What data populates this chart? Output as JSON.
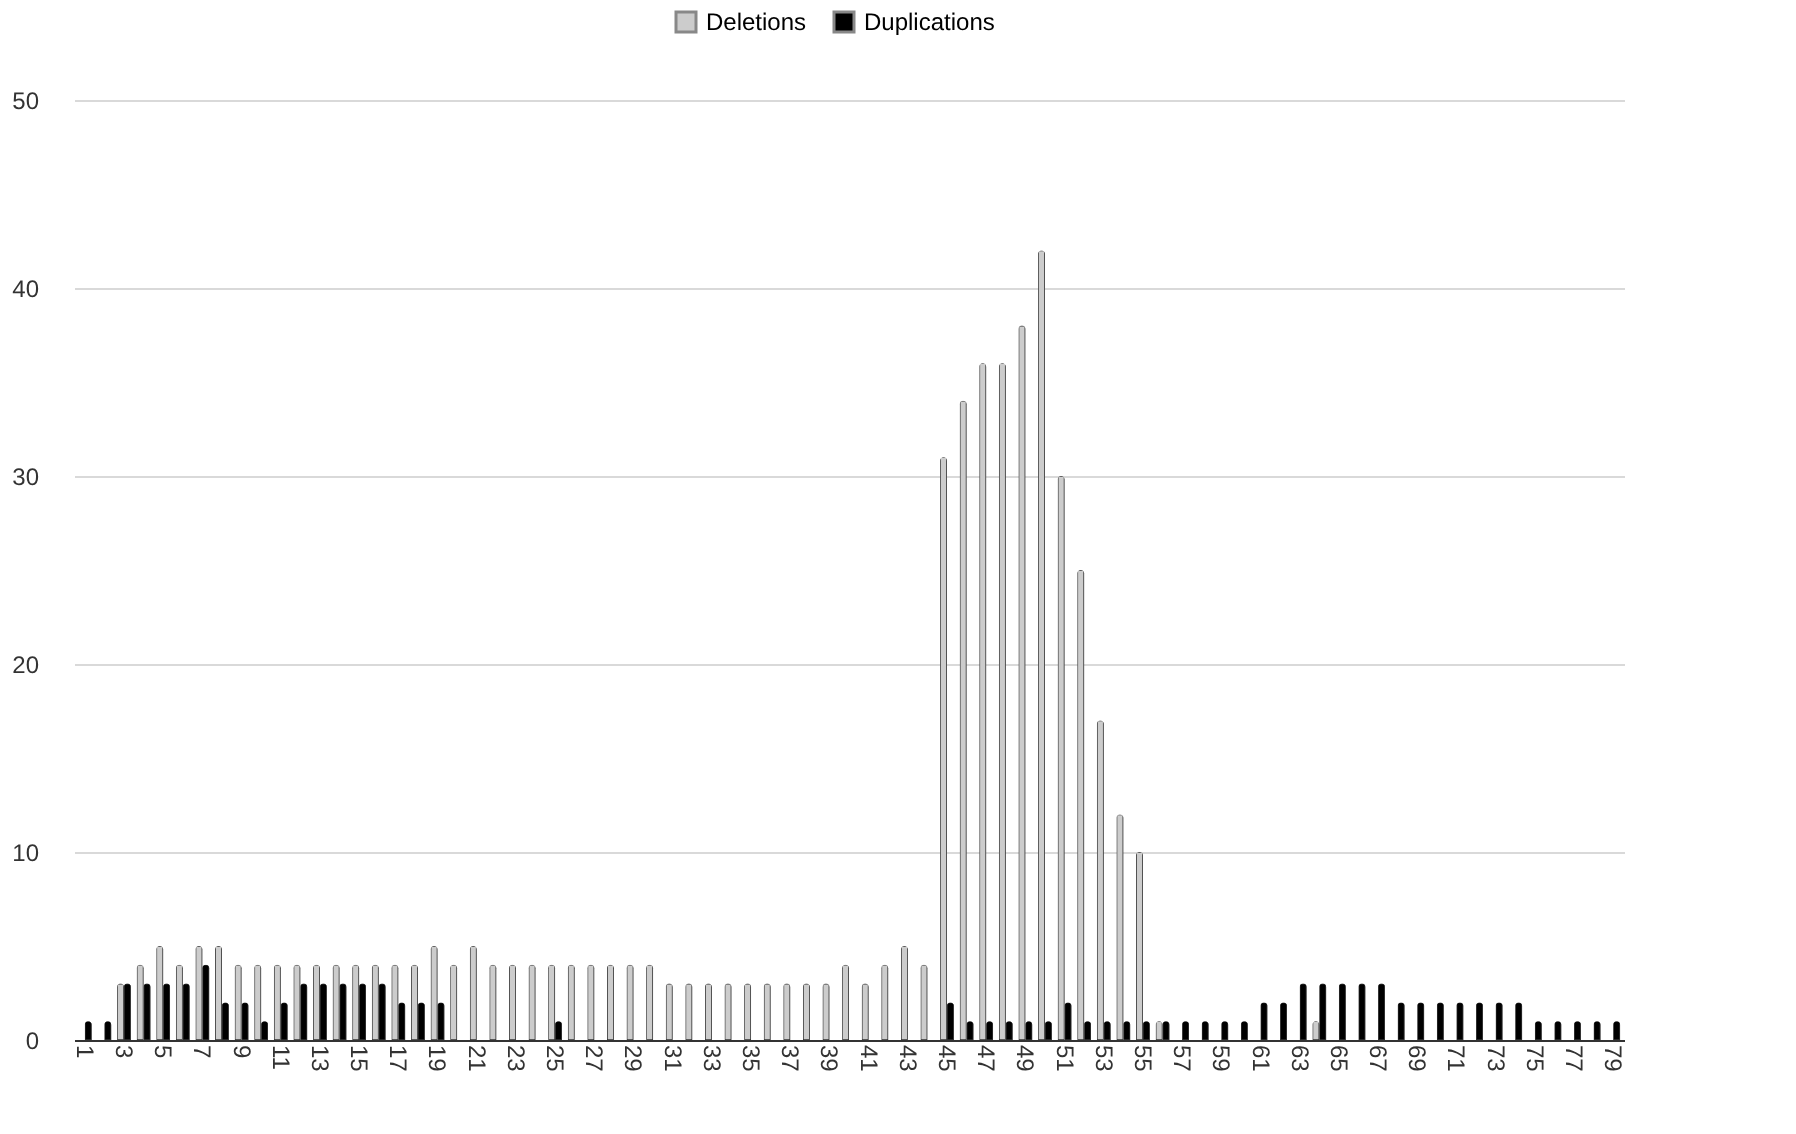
{
  "chart_data": {
    "type": "bar",
    "categories": [
      "1",
      null,
      "3",
      null,
      "5",
      null,
      "7",
      null,
      "9",
      null,
      "11",
      null,
      "13",
      null,
      "15",
      null,
      "17",
      null,
      "19",
      null,
      "21",
      null,
      "23",
      null,
      "25",
      null,
      "27",
      null,
      "29",
      null,
      "31",
      null,
      "33",
      null,
      "35",
      null,
      "37",
      null,
      "39",
      null,
      "41",
      null,
      "43",
      null,
      "45",
      null,
      "47",
      null,
      "49",
      null,
      "51",
      null,
      "53",
      null,
      "55",
      null,
      "57",
      null,
      "59",
      null,
      "61",
      null,
      "63",
      null,
      "65",
      null,
      "67",
      null,
      "69",
      null,
      "71",
      null,
      "73",
      null,
      "75",
      null,
      "77",
      null,
      "79"
    ],
    "series": [
      {
        "name": "Deletions",
        "color": "#cccccc",
        "values": [
          0,
          0,
          3,
          4,
          5,
          4,
          5,
          5,
          4,
          4,
          4,
          4,
          4,
          4,
          4,
          4,
          4,
          4,
          5,
          4,
          5,
          4,
          4,
          4,
          4,
          4,
          4,
          4,
          4,
          4,
          3,
          3,
          3,
          3,
          3,
          3,
          3,
          3,
          3,
          4,
          3,
          4,
          5,
          4,
          31,
          34,
          36,
          36,
          38,
          42,
          30,
          25,
          17,
          12,
          10,
          1,
          0,
          0,
          0,
          0,
          0,
          0,
          0,
          1,
          0,
          0,
          0,
          0,
          0,
          0,
          0,
          0,
          0,
          0,
          0,
          0,
          0,
          0,
          0
        ]
      },
      {
        "name": "Duplications",
        "color": "#000000",
        "values": [
          1,
          1,
          3,
          3,
          3,
          3,
          4,
          2,
          2,
          1,
          2,
          3,
          3,
          3,
          3,
          3,
          2,
          2,
          2,
          0,
          0,
          0,
          0,
          0,
          1,
          0,
          0,
          0,
          0,
          0,
          0,
          0,
          0,
          0,
          0,
          0,
          0,
          0,
          0,
          0,
          0,
          0,
          0,
          0,
          2,
          1,
          1,
          1,
          1,
          1,
          2,
          1,
          1,
          1,
          1,
          1,
          1,
          1,
          1,
          1,
          2,
          2,
          3,
          3,
          3,
          3,
          3,
          2,
          2,
          2,
          2,
          2,
          2,
          2,
          1,
          1,
          1,
          1,
          1
        ]
      }
    ],
    "ylim": [
      0,
      50
    ],
    "yticks": [
      0,
      10,
      20,
      30,
      40,
      50
    ],
    "grid": "y",
    "legend": "top"
  }
}
